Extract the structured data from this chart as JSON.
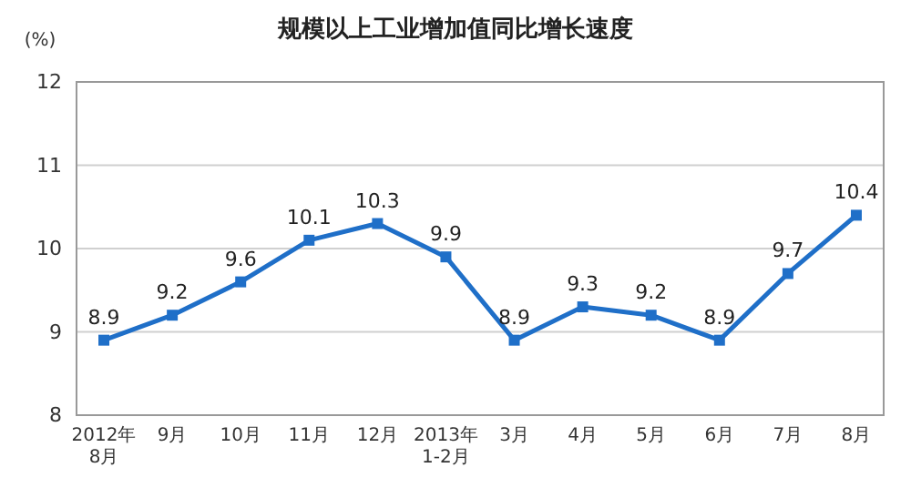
{
  "chart_data": {
    "type": "line",
    "title": "规模以上工业增加值同比增长速度",
    "ylabel": "(%)",
    "categories": [
      "2012年\n8月",
      "9月",
      "10月",
      "11月",
      "12月",
      "2013年\n1-2月",
      "3月",
      "4月",
      "5月",
      "6月",
      "7月",
      "8月"
    ],
    "series": [
      {
        "color": "#1f6fc8",
        "values": [
          8.9,
          9.2,
          9.6,
          10.1,
          10.3,
          9.9,
          8.9,
          9.3,
          9.2,
          8.9,
          9.7,
          10.4
        ]
      }
    ],
    "ylim": [
      8,
      12
    ],
    "yticks": [
      8,
      9,
      10,
      11,
      12
    ],
    "grid": "y",
    "marker": "square",
    "line_style": "solid",
    "data_labels": true
  }
}
